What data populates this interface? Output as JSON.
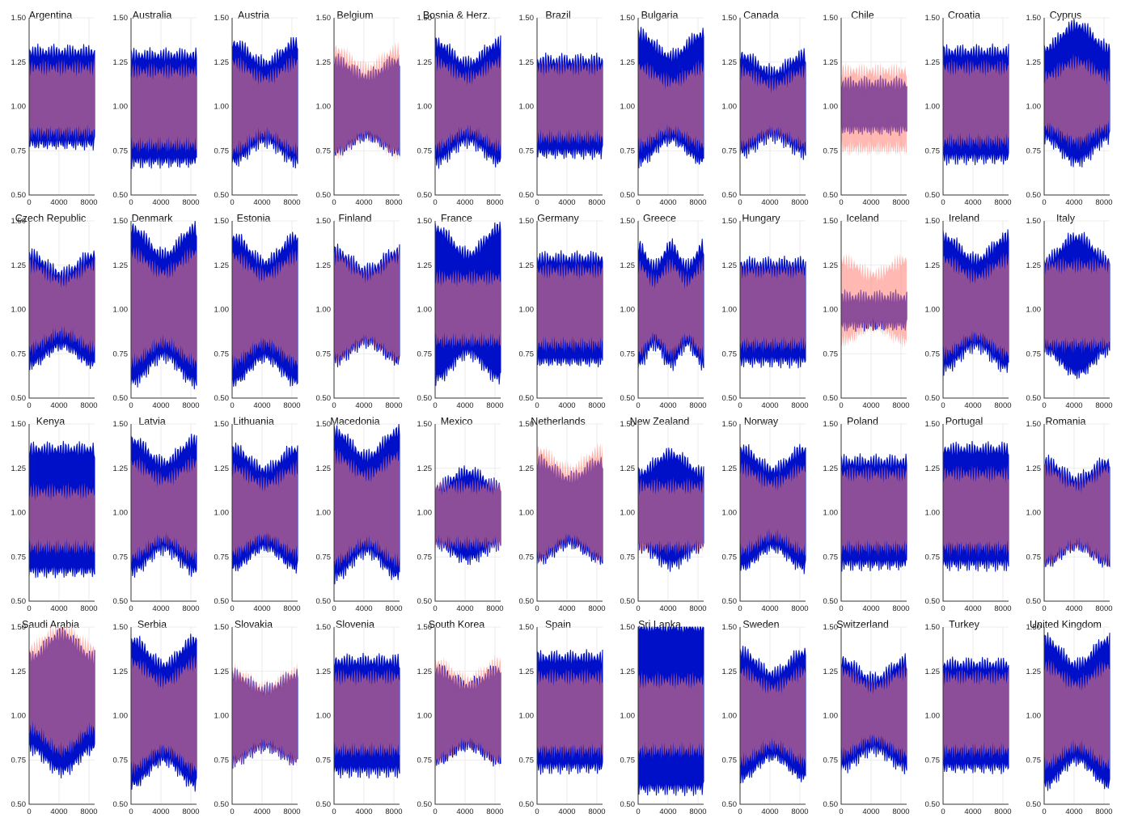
{
  "colors": {
    "series_a": "#0010c8",
    "series_b": "#ff7f72",
    "overlap": "#6a0050"
  },
  "chart_data": {
    "type": "area",
    "grid": true,
    "legend": "none",
    "xlim": [
      0,
      8760
    ],
    "ylim": [
      0.5,
      1.5
    ],
    "xticks": [
      "0",
      "4000",
      "8000"
    ],
    "yticks": [
      "0.50",
      "0.75",
      "1.00",
      "1.25",
      "1.50"
    ],
    "series_colors": [
      "#0010c8",
      "#ff7f72"
    ],
    "panels": [
      {
        "title": "Argentina",
        "a": {
          "shape": "flat",
          "lo": 0.8,
          "hi": 1.3
        },
        "b": {
          "shape": "flat",
          "lo": 0.85,
          "hi": 1.22
        }
      },
      {
        "title": "Australia",
        "a": {
          "shape": "flat",
          "lo": 0.7,
          "hi": 1.28
        },
        "b": {
          "shape": "flat",
          "lo": 0.78,
          "hi": 1.2
        }
      },
      {
        "title": "Austria",
        "a": {
          "shape": "u",
          "lo": 0.7,
          "hi": 1.35
        },
        "b": {
          "shape": "u",
          "lo": 0.75,
          "hi": 1.25
        }
      },
      {
        "title": "Belgium",
        "a": {
          "shape": "u",
          "lo": 0.75,
          "hi": 1.25
        },
        "b": {
          "shape": "u",
          "lo": 0.73,
          "hi": 1.32
        }
      },
      {
        "title": "Bosnia & Herz.",
        "a": {
          "shape": "u",
          "lo": 0.7,
          "hi": 1.35
        },
        "b": {
          "shape": "u",
          "lo": 0.77,
          "hi": 1.25
        }
      },
      {
        "title": "Brazil",
        "a": {
          "shape": "flat",
          "lo": 0.75,
          "hi": 1.25
        },
        "b": {
          "shape": "flat",
          "lo": 0.82,
          "hi": 1.22
        }
      },
      {
        "title": "Bulgaria",
        "a": {
          "shape": "u",
          "lo": 0.7,
          "hi": 1.4
        },
        "b": {
          "shape": "u",
          "lo": 0.78,
          "hi": 1.22
        }
      },
      {
        "title": "Canada",
        "a": {
          "shape": "u",
          "lo": 0.75,
          "hi": 1.28
        },
        "b": {
          "shape": "u",
          "lo": 0.78,
          "hi": 1.2
        }
      },
      {
        "title": "Chile",
        "a": {
          "shape": "flat",
          "lo": 0.88,
          "hi": 1.12
        },
        "b": {
          "shape": "flat",
          "lo": 0.76,
          "hi": 1.2
        }
      },
      {
        "title": "Croatia",
        "a": {
          "shape": "flat",
          "lo": 0.72,
          "hi": 1.3
        },
        "b": {
          "shape": "flat",
          "lo": 0.8,
          "hi": 1.22
        }
      },
      {
        "title": "Cyprus",
        "a": {
          "shape": "n",
          "lo": 0.7,
          "hi": 1.45
        },
        "b": {
          "shape": "n",
          "lo": 0.8,
          "hi": 1.25
        }
      },
      {
        "title": "Czech Republic",
        "a": {
          "shape": "u",
          "lo": 0.7,
          "hi": 1.3
        },
        "b": {
          "shape": "u",
          "lo": 0.78,
          "hi": 1.25
        }
      },
      {
        "title": "Denmark",
        "a": {
          "shape": "u",
          "lo": 0.6,
          "hi": 1.45
        },
        "b": {
          "shape": "u",
          "lo": 0.7,
          "hi": 1.32
        }
      },
      {
        "title": "Estonia",
        "a": {
          "shape": "u",
          "lo": 0.6,
          "hi": 1.4
        },
        "b": {
          "shape": "u",
          "lo": 0.7,
          "hi": 1.3
        }
      },
      {
        "title": "Finland",
        "a": {
          "shape": "u",
          "lo": 0.72,
          "hi": 1.32
        },
        "b": {
          "shape": "u",
          "lo": 0.72,
          "hi": 1.3
        }
      },
      {
        "title": "France",
        "a": {
          "shape": "u",
          "lo": 0.62,
          "hi": 1.45
        },
        "b": {
          "shape": "flat",
          "lo": 0.82,
          "hi": 1.18
        }
      },
      {
        "title": "Germany",
        "a": {
          "shape": "flat",
          "lo": 0.72,
          "hi": 1.28
        },
        "b": {
          "shape": "flat",
          "lo": 0.8,
          "hi": 1.22
        }
      },
      {
        "title": "Greece",
        "a": {
          "shape": "w",
          "lo": 0.7,
          "hi": 1.35
        },
        "b": {
          "shape": "w",
          "lo": 0.75,
          "hi": 1.25
        }
      },
      {
        "title": "Hungary",
        "a": {
          "shape": "flat",
          "lo": 0.72,
          "hi": 1.25
        },
        "b": {
          "shape": "flat",
          "lo": 0.8,
          "hi": 1.22
        }
      },
      {
        "title": "Iceland",
        "a": {
          "shape": "flat",
          "lo": 0.92,
          "hi": 1.06
        },
        "b": {
          "shape": "u",
          "lo": 0.82,
          "hi": 1.28
        }
      },
      {
        "title": "Ireland",
        "a": {
          "shape": "u",
          "lo": 0.68,
          "hi": 1.4
        },
        "b": {
          "shape": "u",
          "lo": 0.75,
          "hi": 1.28
        }
      },
      {
        "title": "Italy",
        "a": {
          "shape": "n",
          "lo": 0.65,
          "hi": 1.4
        },
        "b": {
          "shape": "flat",
          "lo": 0.8,
          "hi": 1.25
        }
      },
      {
        "title": "Kenya",
        "a": {
          "shape": "flat",
          "lo": 0.68,
          "hi": 1.35
        },
        "b": {
          "shape": "flat",
          "lo": 0.8,
          "hi": 1.12
        }
      },
      {
        "title": "Latvia",
        "a": {
          "shape": "u",
          "lo": 0.68,
          "hi": 1.4
        },
        "b": {
          "shape": "u",
          "lo": 0.75,
          "hi": 1.28
        }
      },
      {
        "title": "Lithuania",
        "a": {
          "shape": "u",
          "lo": 0.7,
          "hi": 1.35
        },
        "b": {
          "shape": "u",
          "lo": 0.77,
          "hi": 1.25
        }
      },
      {
        "title": "Macedonia",
        "a": {
          "shape": "u",
          "lo": 0.65,
          "hi": 1.45
        },
        "b": {
          "shape": "u",
          "lo": 0.72,
          "hi": 1.32
        }
      },
      {
        "title": "Mexico",
        "a": {
          "shape": "n",
          "lo": 0.75,
          "hi": 1.22
        },
        "b": {
          "shape": "flat",
          "lo": 0.82,
          "hi": 1.15
        }
      },
      {
        "title": "Netherlands",
        "a": {
          "shape": "u",
          "lo": 0.74,
          "hi": 1.28
        },
        "b": {
          "shape": "u",
          "lo": 0.74,
          "hi": 1.35
        }
      },
      {
        "title": "New Zealand",
        "a": {
          "shape": "n",
          "lo": 0.72,
          "hi": 1.32
        },
        "b": {
          "shape": "flat",
          "lo": 0.8,
          "hi": 1.15
        }
      },
      {
        "title": "Norway",
        "a": {
          "shape": "u",
          "lo": 0.7,
          "hi": 1.35
        },
        "b": {
          "shape": "u",
          "lo": 0.78,
          "hi": 1.25
        }
      },
      {
        "title": "Poland",
        "a": {
          "shape": "flat",
          "lo": 0.72,
          "hi": 1.28
        },
        "b": {
          "shape": "flat",
          "lo": 0.8,
          "hi": 1.22
        }
      },
      {
        "title": "Portugal",
        "a": {
          "shape": "flat",
          "lo": 0.72,
          "hi": 1.35
        },
        "b": {
          "shape": "flat",
          "lo": 0.8,
          "hi": 1.22
        }
      },
      {
        "title": "Romania",
        "a": {
          "shape": "u",
          "lo": 0.72,
          "hi": 1.28
        },
        "b": {
          "shape": "u",
          "lo": 0.72,
          "hi": 1.25
        }
      },
      {
        "title": "Saudi Arabia",
        "a": {
          "shape": "n",
          "lo": 0.7,
          "hi": 1.45
        },
        "b": {
          "shape": "n",
          "lo": 0.8,
          "hi": 1.5
        }
      },
      {
        "title": "Serbia",
        "a": {
          "shape": "u",
          "lo": 0.62,
          "hi": 1.42
        },
        "b": {
          "shape": "u",
          "lo": 0.7,
          "hi": 1.3
        }
      },
      {
        "title": "Slovakia",
        "a": {
          "shape": "u",
          "lo": 0.75,
          "hi": 1.22
        },
        "b": {
          "shape": "u",
          "lo": 0.74,
          "hi": 1.25
        }
      },
      {
        "title": "Slovenia",
        "a": {
          "shape": "flat",
          "lo": 0.7,
          "hi": 1.3
        },
        "b": {
          "shape": "flat",
          "lo": 0.8,
          "hi": 1.22
        }
      },
      {
        "title": "South Korea",
        "a": {
          "shape": "u",
          "lo": 0.75,
          "hi": 1.25
        },
        "b": {
          "shape": "u",
          "lo": 0.74,
          "hi": 1.3
        }
      },
      {
        "title": "Spain",
        "a": {
          "shape": "flat",
          "lo": 0.72,
          "hi": 1.32
        },
        "b": {
          "shape": "flat",
          "lo": 0.8,
          "hi": 1.22
        }
      },
      {
        "title": "Sri Lanka",
        "a": {
          "shape": "flat",
          "lo": 0.6,
          "hi": 1.5
        },
        "b": {
          "shape": "flat",
          "lo": 0.8,
          "hi": 1.2
        }
      },
      {
        "title": "Sweden",
        "a": {
          "shape": "u",
          "lo": 0.66,
          "hi": 1.35
        },
        "b": {
          "shape": "u",
          "lo": 0.74,
          "hi": 1.25
        }
      },
      {
        "title": "Switzerland",
        "a": {
          "shape": "u",
          "lo": 0.72,
          "hi": 1.3
        },
        "b": {
          "shape": "u",
          "lo": 0.78,
          "hi": 1.25
        }
      },
      {
        "title": "Turkey",
        "a": {
          "shape": "flat",
          "lo": 0.72,
          "hi": 1.28
        },
        "b": {
          "shape": "flat",
          "lo": 0.8,
          "hi": 1.22
        }
      },
      {
        "title": "United Kingdom",
        "a": {
          "shape": "u",
          "lo": 0.62,
          "hi": 1.42
        },
        "b": {
          "shape": "u",
          "lo": 0.72,
          "hi": 1.28
        }
      }
    ]
  }
}
